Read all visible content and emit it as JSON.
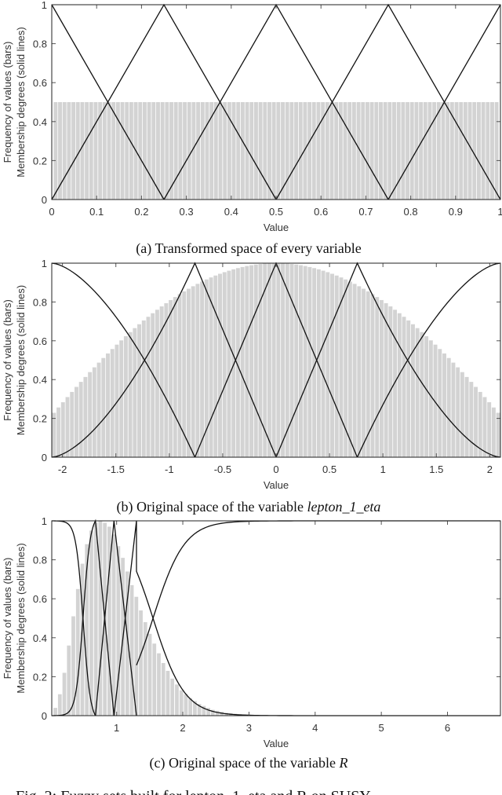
{
  "figure_caption_partial": "Fig. 2: Fuzzy sets built for lepton_1_eta and R on SUSY",
  "chart_data": [
    {
      "type": "bar",
      "id": "a",
      "caption": "(a) Transformed space of every variable",
      "xlabel": "Value",
      "ylabel_line1": "Frequency of values (bars)",
      "ylabel_line2": "Membership degrees (solid lines)",
      "xlim": [
        0,
        1
      ],
      "ylim": [
        0,
        1
      ],
      "xticks": [
        0,
        0.1,
        0.2,
        0.3,
        0.4,
        0.5,
        0.6,
        0.7,
        0.8,
        0.9,
        1
      ],
      "xtick_labels": [
        "0",
        "0.1",
        "0.2",
        "0.3",
        "0.4",
        "0.5",
        "0.6",
        "0.7",
        "0.8",
        "0.9",
        "1"
      ],
      "yticks": [
        0,
        0.2,
        0.4,
        0.6,
        0.8,
        1
      ],
      "ytick_labels": [
        "0",
        "0.2",
        "0.4",
        "0.6",
        "0.8",
        "1"
      ],
      "bars": {
        "count": 100,
        "uniform_height": 0.5,
        "color": "#d3d3d3"
      },
      "membership_functions": {
        "shape": "triangular",
        "peaks": [
          0,
          0.25,
          0.5,
          0.75,
          1
        ],
        "color": "#000000"
      }
    },
    {
      "type": "bar",
      "id": "b",
      "caption_prefix": "(b) Original space of the variable ",
      "caption_var": "lepton_1_eta",
      "xlabel": "Value",
      "ylabel_line1": "Frequency of values (bars)",
      "ylabel_line2": "Membership degrees (solid lines)",
      "xlim": [
        -2.1,
        2.1
      ],
      "ylim": [
        0,
        1
      ],
      "xticks": [
        -2,
        -1.5,
        -1,
        -0.5,
        0,
        0.5,
        1,
        1.5,
        2
      ],
      "xtick_labels": [
        "-2",
        "-1.5",
        "-1",
        "-0.5",
        "0",
        "0.5",
        "1",
        "1.5",
        "2"
      ],
      "yticks": [
        0,
        0.2,
        0.4,
        0.6,
        0.8,
        1
      ],
      "ytick_labels": [
        "0",
        "0.2",
        "0.4",
        "0.6",
        "0.8",
        "1"
      ],
      "bars": {
        "count": 100,
        "distribution": "bell-shaped, peak ~1.0 at 0, ~0.2 at edges",
        "color": "#d3d3d3"
      },
      "membership_functions": {
        "shape": "curved at edges, triangular inside",
        "peaks": [
          -2.1,
          -0.76,
          0,
          0.76,
          2.1
        ],
        "crossings_at_0.5": [
          -1.25,
          -0.36,
          0.36,
          1.25
        ],
        "color": "#000000"
      }
    },
    {
      "type": "bar",
      "id": "c",
      "caption_prefix": "(c) Original space of the variable ",
      "caption_var": "R",
      "xlabel": "Value",
      "ylabel_line1": "Frequency of values (bars)",
      "ylabel_line2": "Membership degrees (solid lines)",
      "xlim": [
        0.02,
        6.8
      ],
      "ylim": [
        0,
        1
      ],
      "xticks": [
        1,
        2,
        3,
        4,
        5,
        6
      ],
      "xtick_labels": [
        "1",
        "2",
        "3",
        "4",
        "5",
        "6"
      ],
      "yticks": [
        0,
        0.2,
        0.4,
        0.6,
        0.8,
        1
      ],
      "ytick_labels": [
        "0",
        "0.2",
        "0.4",
        "0.6",
        "0.8",
        "1"
      ],
      "bars": {
        "bin_width": 0.068,
        "values": [
          0.04,
          0.11,
          0.22,
          0.36,
          0.51,
          0.65,
          0.78,
          0.88,
          0.95,
          0.99,
          1.0,
          0.99,
          0.97,
          0.93,
          0.87,
          0.81,
          0.74,
          0.67,
          0.61,
          0.54,
          0.48,
          0.42,
          0.37,
          0.32,
          0.27,
          0.23,
          0.19,
          0.16,
          0.13,
          0.11,
          0.09,
          0.075,
          0.06,
          0.05,
          0.04,
          0.03,
          0.025,
          0.02,
          0.015,
          0.012,
          0.01,
          0.008,
          0.006,
          0.005,
          0.004,
          0.003,
          0.002,
          0.002,
          0.001,
          0.001
        ],
        "color": "#d3d3d3"
      },
      "membership_functions": {
        "shape": "sigmoid edges, triangular inside",
        "peaks": [
          0.02,
          0.68,
          0.96,
          1.3,
          6.8
        ],
        "crossings_at_0.5": [
          0.5,
          0.82,
          1.13,
          1.55
        ],
        "color": "#000000"
      }
    }
  ]
}
